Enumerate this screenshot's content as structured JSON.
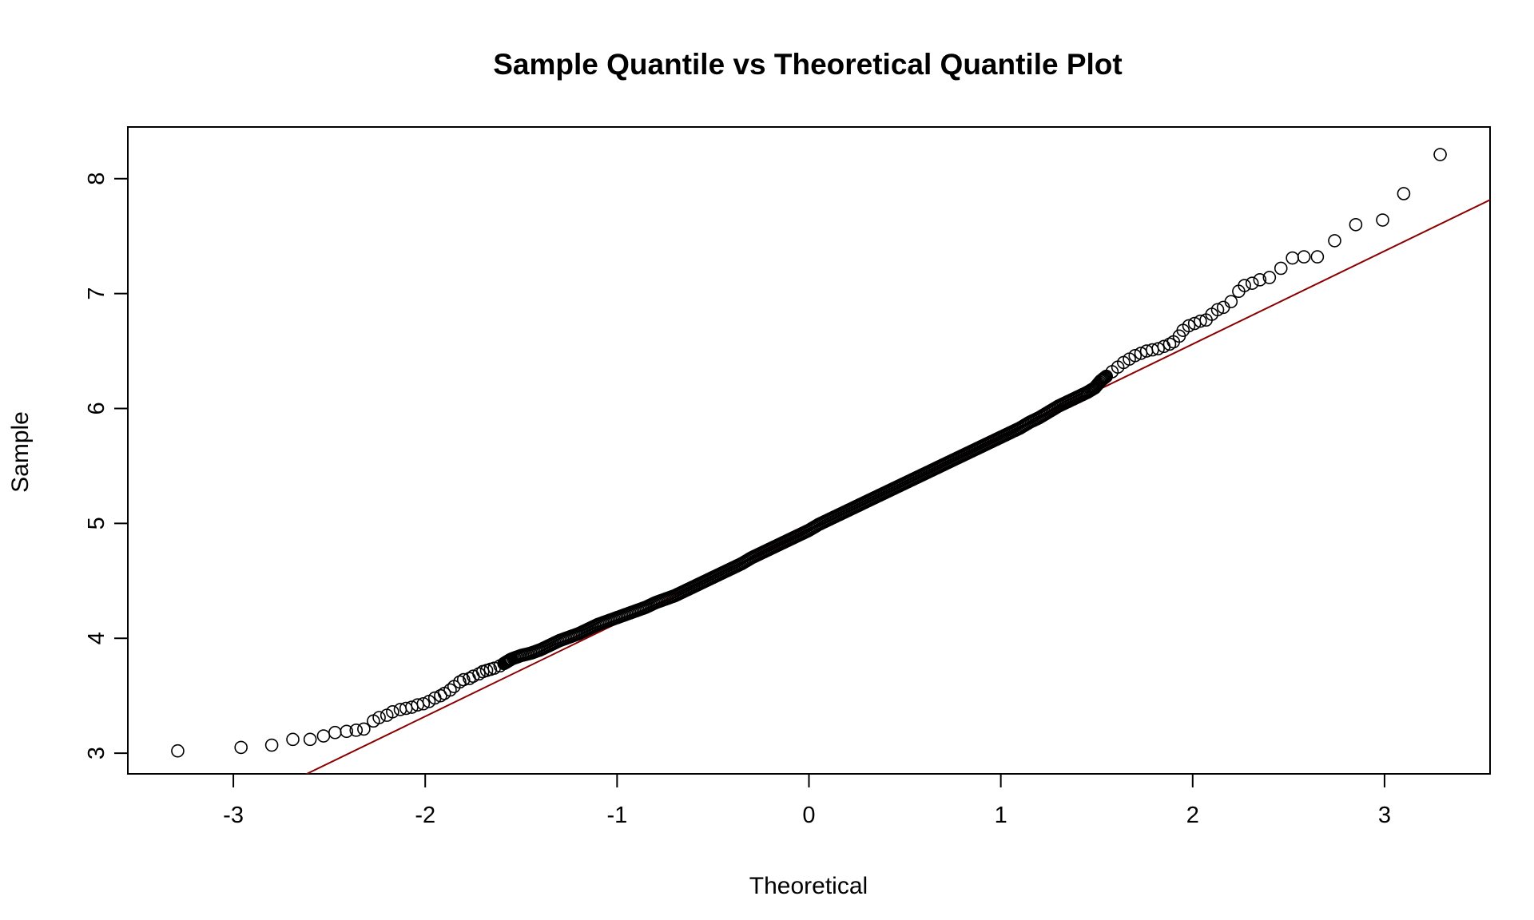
{
  "chart_data": {
    "type": "scatter",
    "title": "Sample Quantile vs Theoretical Quantile Plot",
    "xlabel": "Theoretical",
    "ylabel": "Sample",
    "xlim": [
      -3.55,
      3.55
    ],
    "ylim": [
      2.82,
      8.45
    ],
    "x_ticks": [
      -3,
      -2,
      -1,
      0,
      1,
      2,
      3
    ],
    "x_tick_labels": [
      "-3",
      "-2",
      "-1",
      "0",
      "1",
      "2",
      "3"
    ],
    "y_ticks": [
      3,
      4,
      5,
      6,
      7,
      8
    ],
    "y_tick_labels": [
      "3",
      "4",
      "5",
      "6",
      "7",
      "8"
    ],
    "grid": false,
    "legend": "none",
    "marker": "open-circle",
    "point_color": "#000000",
    "reference_line": {
      "color": "#8b0000",
      "intercept": 4.94,
      "slope": 0.81
    },
    "series": [
      {
        "points": [
          [
            -3.29,
            3.02
          ],
          [
            -2.96,
            3.05
          ],
          [
            -2.8,
            3.07
          ],
          [
            -2.69,
            3.12
          ],
          [
            -2.6,
            3.12
          ],
          [
            -2.53,
            3.15
          ],
          [
            -2.47,
            3.18
          ],
          [
            -2.41,
            3.19
          ],
          [
            -2.36,
            3.2
          ],
          [
            -2.32,
            3.21
          ],
          [
            -2.27,
            3.28
          ],
          [
            -2.24,
            3.31
          ],
          [
            -2.2,
            3.33
          ],
          [
            -2.17,
            3.36
          ],
          [
            -2.13,
            3.38
          ],
          [
            -2.1,
            3.39
          ],
          [
            -2.07,
            3.4
          ],
          [
            -2.04,
            3.42
          ],
          [
            -2.01,
            3.43
          ],
          [
            -1.98,
            3.45
          ],
          [
            -1.95,
            3.48
          ],
          [
            -1.92,
            3.5
          ],
          [
            -1.9,
            3.52
          ],
          [
            -1.87,
            3.55
          ],
          [
            -1.85,
            3.58
          ],
          [
            -1.82,
            3.62
          ],
          [
            -1.8,
            3.64
          ],
          [
            -1.77,
            3.65
          ],
          [
            -1.75,
            3.67
          ],
          [
            -1.72,
            3.69
          ],
          [
            -1.7,
            3.71
          ],
          [
            -1.68,
            3.72
          ],
          [
            -1.66,
            3.73
          ],
          [
            -1.64,
            3.74
          ],
          [
            -1.61,
            3.76
          ],
          [
            -1.59,
            3.78
          ],
          [
            -1.57,
            3.8
          ],
          [
            -1.55,
            3.82
          ],
          [
            -1.5,
            3.85
          ],
          [
            -1.45,
            3.87
          ],
          [
            -1.4,
            3.9
          ],
          [
            -1.35,
            3.94
          ],
          [
            -1.3,
            3.98
          ],
          [
            -1.25,
            4.01
          ],
          [
            -1.2,
            4.04
          ],
          [
            -1.15,
            4.08
          ],
          [
            -1.1,
            4.12
          ],
          [
            -1.05,
            4.15
          ],
          [
            -1.0,
            4.18
          ],
          [
            -0.95,
            4.21
          ],
          [
            -0.9,
            4.24
          ],
          [
            -0.85,
            4.27
          ],
          [
            -0.8,
            4.31
          ],
          [
            -0.75,
            4.34
          ],
          [
            -0.7,
            4.37
          ],
          [
            -0.65,
            4.41
          ],
          [
            -0.6,
            4.45
          ],
          [
            -0.55,
            4.49
          ],
          [
            -0.5,
            4.53
          ],
          [
            -0.45,
            4.57
          ],
          [
            -0.4,
            4.61
          ],
          [
            -0.35,
            4.65
          ],
          [
            -0.3,
            4.7
          ],
          [
            -0.25,
            4.74
          ],
          [
            -0.2,
            4.78
          ],
          [
            -0.15,
            4.82
          ],
          [
            -0.1,
            4.86
          ],
          [
            -0.05,
            4.9
          ],
          [
            0.0,
            4.94
          ],
          [
            0.05,
            4.99
          ],
          [
            0.1,
            5.03
          ],
          [
            0.15,
            5.07
          ],
          [
            0.2,
            5.11
          ],
          [
            0.25,
            5.15
          ],
          [
            0.3,
            5.19
          ],
          [
            0.35,
            5.23
          ],
          [
            0.4,
            5.27
          ],
          [
            0.45,
            5.31
          ],
          [
            0.5,
            5.35
          ],
          [
            0.55,
            5.39
          ],
          [
            0.6,
            5.43
          ],
          [
            0.65,
            5.47
          ],
          [
            0.7,
            5.51
          ],
          [
            0.75,
            5.55
          ],
          [
            0.8,
            5.59
          ],
          [
            0.85,
            5.63
          ],
          [
            0.9,
            5.67
          ],
          [
            0.95,
            5.71
          ],
          [
            1.0,
            5.75
          ],
          [
            1.05,
            5.79
          ],
          [
            1.1,
            5.83
          ],
          [
            1.15,
            5.88
          ],
          [
            1.2,
            5.92
          ],
          [
            1.25,
            5.97
          ],
          [
            1.3,
            6.02
          ],
          [
            1.35,
            6.06
          ],
          [
            1.4,
            6.1
          ],
          [
            1.45,
            6.14
          ],
          [
            1.49,
            6.18
          ],
          [
            1.52,
            6.24
          ],
          [
            1.55,
            6.28
          ],
          [
            1.58,
            6.32
          ],
          [
            1.61,
            6.36
          ],
          [
            1.64,
            6.4
          ],
          [
            1.67,
            6.43
          ],
          [
            1.7,
            6.46
          ],
          [
            1.73,
            6.48
          ],
          [
            1.76,
            6.5
          ],
          [
            1.79,
            6.51
          ],
          [
            1.82,
            6.52
          ],
          [
            1.85,
            6.54
          ],
          [
            1.88,
            6.56
          ],
          [
            1.9,
            6.58
          ],
          [
            1.93,
            6.63
          ],
          [
            1.95,
            6.68
          ],
          [
            1.98,
            6.72
          ],
          [
            2.01,
            6.74
          ],
          [
            2.04,
            6.76
          ],
          [
            2.07,
            6.77
          ],
          [
            2.1,
            6.82
          ],
          [
            2.13,
            6.86
          ],
          [
            2.16,
            6.88
          ],
          [
            2.2,
            6.93
          ],
          [
            2.24,
            7.02
          ],
          [
            2.27,
            7.07
          ],
          [
            2.31,
            7.09
          ],
          [
            2.35,
            7.12
          ],
          [
            2.4,
            7.14
          ],
          [
            2.46,
            7.22
          ],
          [
            2.52,
            7.31
          ],
          [
            2.58,
            7.32
          ],
          [
            2.65,
            7.32
          ],
          [
            2.74,
            7.46
          ],
          [
            2.85,
            7.6
          ],
          [
            2.99,
            7.64
          ],
          [
            3.1,
            7.87
          ],
          [
            3.29,
            8.21
          ]
        ]
      }
    ]
  }
}
